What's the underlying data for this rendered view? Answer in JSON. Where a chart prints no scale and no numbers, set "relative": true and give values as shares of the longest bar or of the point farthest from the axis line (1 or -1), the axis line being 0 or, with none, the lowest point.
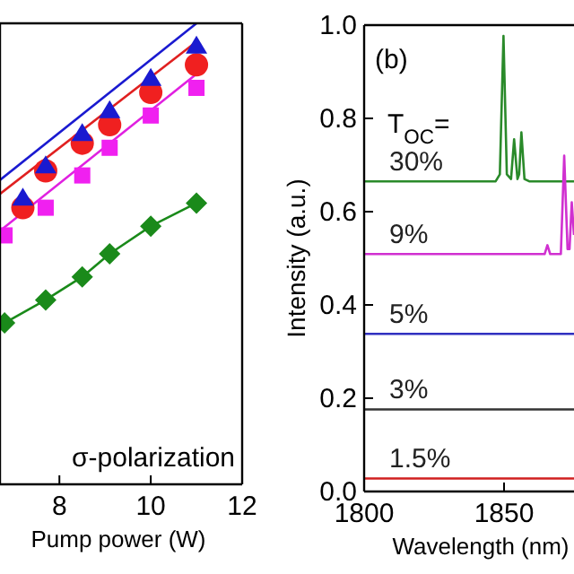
{
  "chart_data": [
    {
      "type": "scatter",
      "relative": true,
      "xlabel": "Pump power (W)",
      "xlim": [
        6.7,
        12
      ],
      "xticks": [
        8,
        10,
        12
      ],
      "tick_labels": "x",
      "grid": false,
      "annotations": [
        "σ-polarization"
      ],
      "series": [
        {
          "type": "line",
          "color": "#1a1ad0",
          "marker": "none",
          "x": [
            6.7,
            11
          ],
          "values": [
            0.66,
            1.0
          ]
        },
        {
          "type": "line",
          "color": "#e02020",
          "marker": "none",
          "x": [
            6.7,
            11
          ],
          "values": [
            0.63,
            0.96
          ]
        },
        {
          "type": "line",
          "color": "#e020e0",
          "marker": "none",
          "x": [
            6.7,
            11
          ],
          "values": [
            0.55,
            0.89
          ]
        },
        {
          "type": "line",
          "color": "#1a8a1a",
          "marker": "diamond",
          "x": [
            6.8,
            7.7,
            8.5,
            9.1,
            10,
            11
          ],
          "values": [
            0.35,
            0.4,
            0.45,
            0.5,
            0.56,
            0.61
          ]
        },
        {
          "color": "#f020f0",
          "marker": "square",
          "x": [
            6.8,
            7.7,
            8.5,
            9.1,
            10,
            11
          ],
          "values": [
            0.54,
            0.6,
            0.67,
            0.73,
            0.8,
            0.86
          ]
        },
        {
          "color": "#f02020",
          "marker": "circle",
          "x": [
            7.2,
            7.7,
            8.5,
            9.1,
            10,
            11
          ],
          "values": [
            0.6,
            0.68,
            0.74,
            0.78,
            0.85,
            0.91
          ]
        },
        {
          "color": "#1a1ad0",
          "marker": "triangle",
          "x": [
            7.2,
            7.7,
            8.5,
            9.1,
            10,
            11
          ],
          "values": [
            0.62,
            0.69,
            0.76,
            0.81,
            0.88,
            0.95
          ]
        }
      ]
    },
    {
      "type": "line",
      "xlabel": "Wavelength (nm)",
      "ylabel": "Intensity (a.u.)",
      "xlim": [
        1800,
        1875
      ],
      "xticks": [
        1800,
        1850
      ],
      "ylim": [
        0,
        1
      ],
      "yticks": [
        {
          "value": 0,
          "label": "0.0"
        },
        0.2,
        0.4,
        0.6,
        0.8,
        {
          "value": 1,
          "label": "1.0"
        }
      ],
      "grid": false,
      "annotations": [
        "(b)",
        "T$_{OC}$="
      ],
      "series": [
        {
          "name": "30%",
          "color": "#2a8a2a",
          "x": [
            1800,
            1847,
            1848.5,
            1849.8,
            1851,
            1852.5,
            1853.6,
            1854.8,
            1855.4,
            1856.2,
            1857.3,
            1859,
            1875
          ],
          "values": [
            0.665,
            0.665,
            0.68,
            0.977,
            0.68,
            0.67,
            0.755,
            0.67,
            0.68,
            0.77,
            0.67,
            0.665,
            0.665
          ]
        },
        {
          "name": "9%",
          "color": "#d030d0",
          "x": [
            1800,
            1864.5,
            1865.5,
            1866.5,
            1870.3,
            1871.5,
            1872.7,
            1873.4,
            1874.2,
            1875
          ],
          "values": [
            0.509,
            0.509,
            0.528,
            0.509,
            0.509,
            0.72,
            0.52,
            0.52,
            0.62,
            0.55
          ]
        },
        {
          "name": "5%",
          "color": "#3030c0",
          "x": [
            1800,
            1875
          ],
          "values": [
            0.338,
            0.338
          ]
        },
        {
          "name": "3%",
          "color": "#333333",
          "x": [
            1800,
            1875
          ],
          "values": [
            0.176,
            0.176
          ]
        },
        {
          "name": "1.5%",
          "color": "#d02020",
          "x": [
            1800,
            1875
          ],
          "values": [
            0.028,
            0.028
          ]
        }
      ]
    }
  ]
}
